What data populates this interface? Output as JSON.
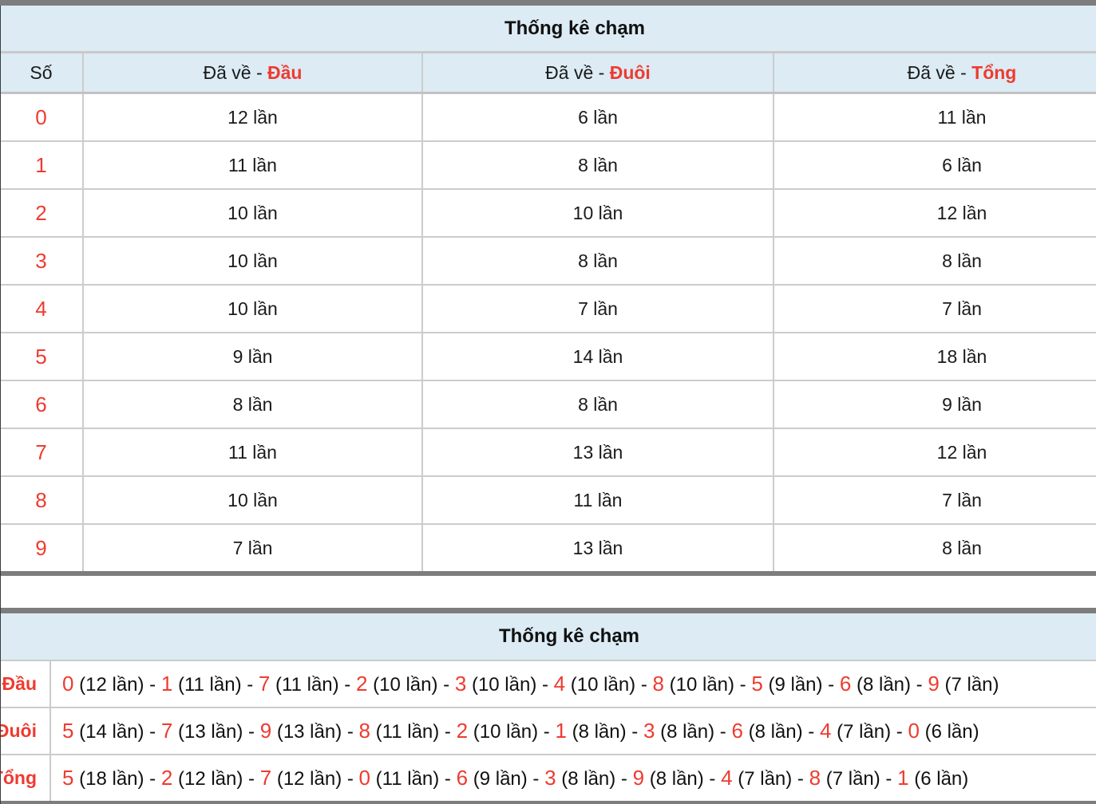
{
  "colors": {
    "accent_red": "#ee3b30",
    "header_bg": "#dcebf4",
    "thick_border": "#7d7d7d",
    "cell_border": "#cccccc"
  },
  "table1": {
    "title": "Thống kê chạm",
    "header": {
      "so": "Số",
      "prefix": "Đã về - ",
      "dau": "Đầu",
      "duoi": "Đuôi",
      "tong": "Tổng"
    },
    "rows": [
      {
        "so": "0",
        "dau": "12 lần",
        "duoi": "6 lần",
        "tong": "11 lần"
      },
      {
        "so": "1",
        "dau": "11 lần",
        "duoi": "8 lần",
        "tong": "6 lần"
      },
      {
        "so": "2",
        "dau": "10 lần",
        "duoi": "10 lần",
        "tong": "12 lần"
      },
      {
        "so": "3",
        "dau": "10 lần",
        "duoi": "8 lần",
        "tong": "8 lần"
      },
      {
        "so": "4",
        "dau": "10 lần",
        "duoi": "7 lần",
        "tong": "7 lần"
      },
      {
        "so": "5",
        "dau": "9 lần",
        "duoi": "14 lần",
        "tong": "18 lần"
      },
      {
        "so": "6",
        "dau": "8 lần",
        "duoi": "8 lần",
        "tong": "9 lần"
      },
      {
        "so": "7",
        "dau": "11 lần",
        "duoi": "13 lần",
        "tong": "12 lần"
      },
      {
        "so": "8",
        "dau": "10 lần",
        "duoi": "11 lần",
        "tong": "7 lần"
      },
      {
        "so": "9",
        "dau": "7 lần",
        "duoi": "13 lần",
        "tong": "8 lần"
      }
    ]
  },
  "table2": {
    "title": "Thống kê chạm",
    "separator": " - ",
    "rows": [
      {
        "label": "Đầu",
        "items": [
          {
            "n": "0",
            "c": "(12 lần)"
          },
          {
            "n": "1",
            "c": "(11 lần)"
          },
          {
            "n": "7",
            "c": "(11 lần)"
          },
          {
            "n": "2",
            "c": "(10 lần)"
          },
          {
            "n": "3",
            "c": "(10 lần)"
          },
          {
            "n": "4",
            "c": "(10 lần)"
          },
          {
            "n": "8",
            "c": "(10 lần)"
          },
          {
            "n": "5",
            "c": "(9 lần)"
          },
          {
            "n": "6",
            "c": "(8 lần)"
          },
          {
            "n": "9",
            "c": "(7 lần)"
          }
        ]
      },
      {
        "label": "Đuôi",
        "items": [
          {
            "n": "5",
            "c": "(14 lần)"
          },
          {
            "n": "7",
            "c": "(13 lần)"
          },
          {
            "n": "9",
            "c": "(13 lần)"
          },
          {
            "n": "8",
            "c": "(11 lần)"
          },
          {
            "n": "2",
            "c": "(10 lần)"
          },
          {
            "n": "1",
            "c": "(8 lần)"
          },
          {
            "n": "3",
            "c": "(8 lần)"
          },
          {
            "n": "6",
            "c": "(8 lần)"
          },
          {
            "n": "4",
            "c": "(7 lần)"
          },
          {
            "n": "0",
            "c": "(6 lần)"
          }
        ]
      },
      {
        "label": "Tổng",
        "items": [
          {
            "n": "5",
            "c": "(18 lần)"
          },
          {
            "n": "2",
            "c": "(12 lần)"
          },
          {
            "n": "7",
            "c": "(12 lần)"
          },
          {
            "n": "0",
            "c": "(11 lần)"
          },
          {
            "n": "6",
            "c": "(9 lần)"
          },
          {
            "n": "3",
            "c": "(8 lần)"
          },
          {
            "n": "9",
            "c": "(8 lần)"
          },
          {
            "n": "4",
            "c": "(7 lần)"
          },
          {
            "n": "8",
            "c": "(7 lần)"
          },
          {
            "n": "1",
            "c": "(6 lần)"
          }
        ]
      }
    ]
  }
}
